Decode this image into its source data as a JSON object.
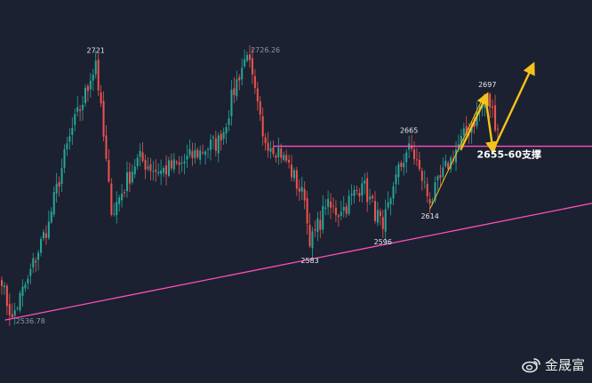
{
  "chart_data": {
    "type": "candlestick",
    "title": "",
    "xlabel": "",
    "ylabel": "",
    "ylim": [
      2520,
      2745
    ],
    "colors": {
      "up": "#26a69a",
      "down": "#ef5350",
      "trendline": "#ff4fbf",
      "arrow": "#f5c21b",
      "background": "#1b2130"
    },
    "anchors": [
      {
        "i": 0,
        "close": 2560
      },
      {
        "i": 4,
        "close": 2538
      },
      {
        "i": 10,
        "close": 2565
      },
      {
        "i": 18,
        "close": 2605
      },
      {
        "i": 26,
        "close": 2665
      },
      {
        "i": 34,
        "close": 2704
      },
      {
        "i": 36,
        "close": 2718
      },
      {
        "i": 42,
        "close": 2610
      },
      {
        "i": 52,
        "close": 2650
      },
      {
        "i": 60,
        "close": 2640
      },
      {
        "i": 68,
        "close": 2645
      },
      {
        "i": 76,
        "close": 2655
      },
      {
        "i": 84,
        "close": 2662
      },
      {
        "i": 90,
        "close": 2705
      },
      {
        "i": 94,
        "close": 2722
      },
      {
        "i": 100,
        "close": 2665
      },
      {
        "i": 108,
        "close": 2652
      },
      {
        "i": 116,
        "close": 2620
      },
      {
        "i": 118,
        "close": 2588
      },
      {
        "i": 124,
        "close": 2615
      },
      {
        "i": 130,
        "close": 2612
      },
      {
        "i": 138,
        "close": 2632
      },
      {
        "i": 146,
        "close": 2600
      },
      {
        "i": 150,
        "close": 2630
      },
      {
        "i": 156,
        "close": 2660
      },
      {
        "i": 160,
        "close": 2642
      },
      {
        "i": 164,
        "close": 2618
      },
      {
        "i": 172,
        "close": 2650
      },
      {
        "i": 180,
        "close": 2673
      },
      {
        "i": 186,
        "close": 2693
      },
      {
        "i": 190,
        "close": 2670
      }
    ],
    "candle_count": 191,
    "annotations": [
      {
        "text": "2721",
        "i": 36,
        "price": 2721
      },
      {
        "text": "2726.26",
        "i": 94,
        "price": 2726.26
      },
      {
        "text": "2536.78",
        "i": 4,
        "price": 2536.78
      },
      {
        "text": "2583",
        "i": 118,
        "price": 2583
      },
      {
        "text": "2596",
        "i": 146,
        "price": 2596
      },
      {
        "text": "2614",
        "i": 164,
        "price": 2614
      },
      {
        "text": "2665",
        "i": 156,
        "price": 2665
      },
      {
        "text": "2697",
        "i": 186,
        "price": 2697
      }
    ],
    "support_label": "2655-60支撑",
    "horizontal_line": {
      "price": 2658,
      "from_i": 104
    },
    "trendline": {
      "from": {
        "i": 4,
        "price": 2536.78
      },
      "to_price_at_end": 2618
    }
  },
  "watermark": {
    "text": "金晟富",
    "icon": "weibo-icon"
  }
}
